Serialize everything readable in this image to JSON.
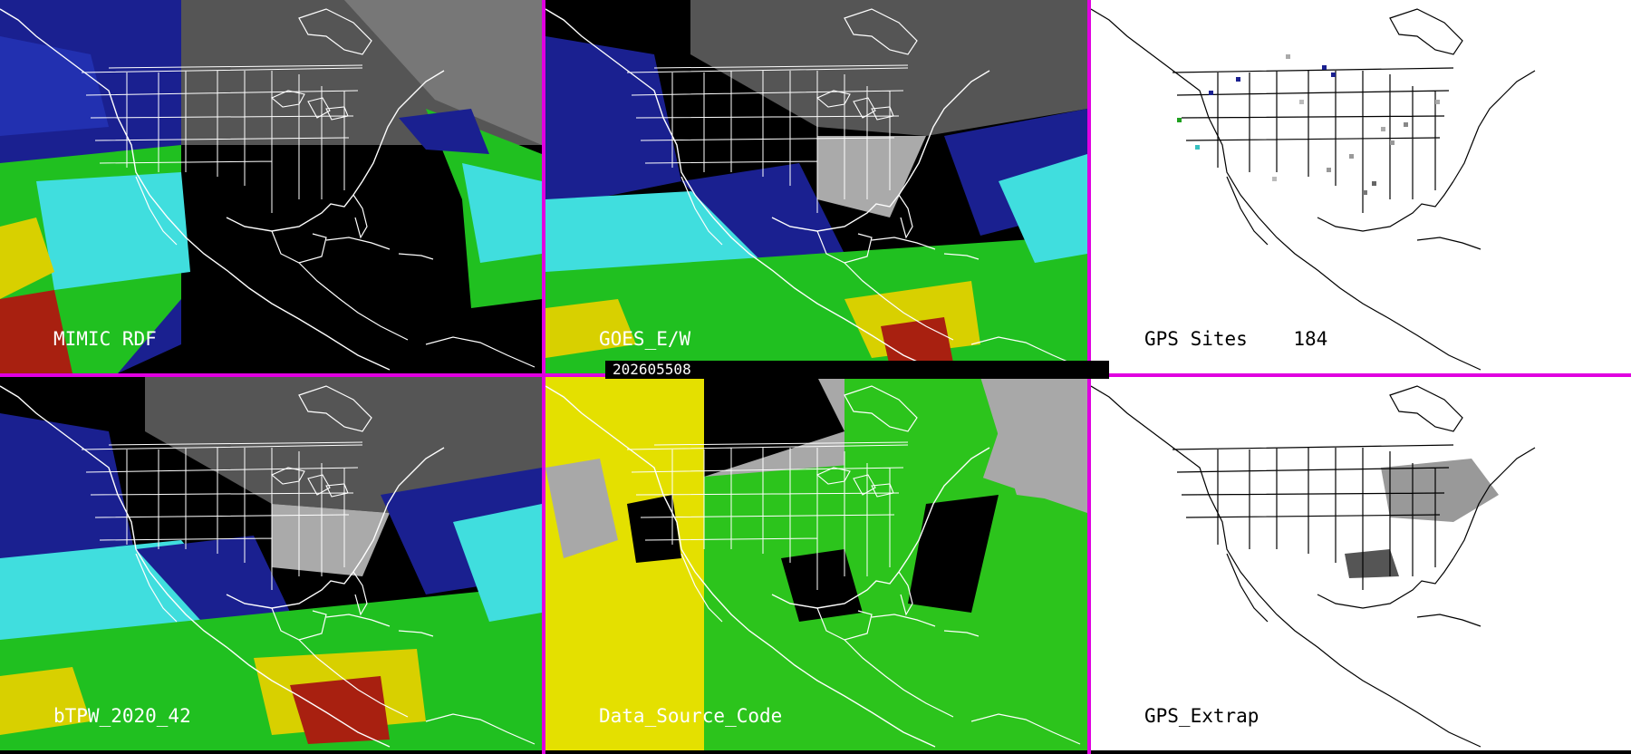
{
  "timestamp": "202605508",
  "panels": [
    {
      "label": "MIMIC RDF"
    },
    {
      "label": "GOES_E/W"
    },
    {
      "label": "GPS Sites    184"
    },
    {
      "label": "bTPW_2020_42"
    },
    {
      "label": "Data_Source_Code"
    },
    {
      "label": "GPS_Extrap"
    }
  ],
  "colors": {
    "separator": "#e000e0",
    "dry_blue": "#1b1f9c",
    "moist_cyan": "#38e0e0",
    "moist_green": "#22c020",
    "wet_yellow": "#e0d800",
    "very_wet_red": "#a01010",
    "source_yellow": "#e4e000",
    "source_gray": "#a8a8a8",
    "source_green": "#2cc41c"
  }
}
